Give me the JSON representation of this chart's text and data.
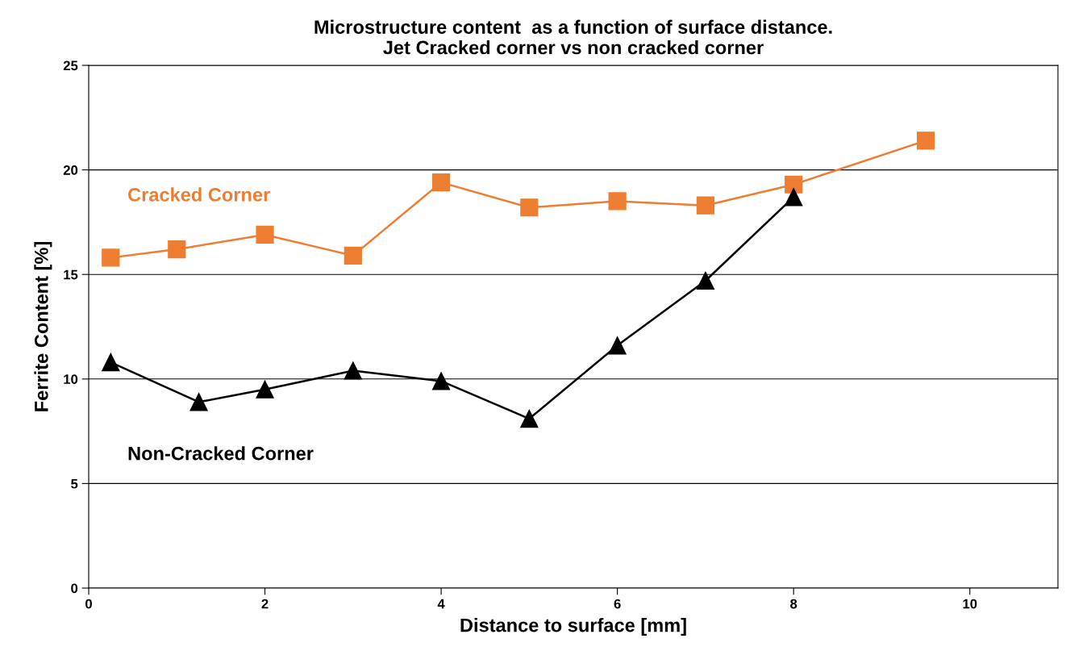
{
  "chart_data": {
    "type": "line",
    "title": "Microstructure content  as a function of surface distance.\nJet Cracked corner vs non cracked corner",
    "xlabel": "Distance to surface [mm]",
    "ylabel": "Ferrite Content [%]",
    "series": [
      {
        "name": "Cracked Corner",
        "color": "#ed7d31",
        "marker": "square",
        "x": [
          0.25,
          1,
          2,
          3,
          4,
          5,
          6,
          7,
          8,
          9.5
        ],
        "values": [
          15.8,
          16.2,
          16.9,
          15.9,
          19.4,
          18.2,
          18.5,
          18.3,
          19.3,
          21.4
        ]
      },
      {
        "name": "Non-Cracked Corner",
        "color": "#000000",
        "marker": "triangle",
        "x": [
          0.25,
          1.25,
          2,
          3,
          4,
          5,
          6,
          7,
          8
        ],
        "values": [
          10.8,
          8.9,
          9.5,
          10.4,
          9.9,
          8.1,
          11.6,
          14.7,
          18.7
        ]
      }
    ],
    "xlim": [
      0,
      11
    ],
    "xticks": [
      0,
      2,
      4,
      6,
      8,
      10
    ],
    "ylim": [
      0,
      25
    ],
    "yticks": [
      0,
      5,
      10,
      15,
      20,
      25
    ],
    "grid": "y",
    "legend": false,
    "line_style": "solid"
  }
}
